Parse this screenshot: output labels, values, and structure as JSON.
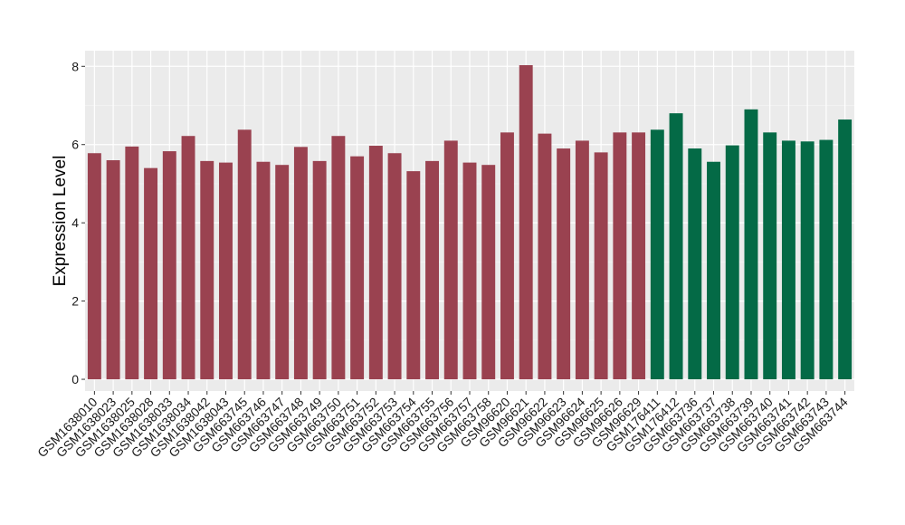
{
  "chart_data": {
    "type": "bar",
    "ylabel": "Expression Level",
    "xlabel": "",
    "ylim": [
      -0.3,
      8.4
    ],
    "yticks": [
      0,
      2,
      4,
      6,
      8
    ],
    "grid": true,
    "background": "#ebebeb",
    "categories": [
      "GSM1638010",
      "GSM1638023",
      "GSM1638025",
      "GSM1638028",
      "GSM1638033",
      "GSM1638034",
      "GSM1638042",
      "GSM1638043",
      "GSM663745",
      "GSM663746",
      "GSM663747",
      "GSM663748",
      "GSM663749",
      "GSM663750",
      "GSM663751",
      "GSM663752",
      "GSM663753",
      "GSM663754",
      "GSM663755",
      "GSM663756",
      "GSM663757",
      "GSM663758",
      "GSM96620",
      "GSM96621",
      "GSM96622",
      "GSM96623",
      "GSM96624",
      "GSM96625",
      "GSM96626",
      "GSM96629",
      "GSM176411",
      "GSM176412",
      "GSM663736",
      "GSM663737",
      "GSM663738",
      "GSM663739",
      "GSM663740",
      "GSM663741",
      "GSM663742",
      "GSM663743",
      "GSM663744"
    ],
    "values": [
      5.78,
      5.6,
      5.95,
      5.4,
      5.83,
      6.22,
      5.58,
      5.54,
      6.38,
      5.56,
      5.48,
      5.94,
      5.58,
      6.22,
      5.7,
      5.97,
      5.78,
      5.32,
      5.58,
      6.1,
      5.54,
      5.48,
      6.31,
      8.03,
      6.28,
      5.9,
      6.1,
      5.8,
      6.31,
      6.31,
      6.38,
      6.8,
      5.9,
      5.56,
      5.98,
      6.9,
      6.31,
      6.1,
      6.08,
      6.12,
      6.64
    ],
    "groups": [
      {
        "color": "#9a4250",
        "count": 30
      },
      {
        "color": "#046a46",
        "count": 11
      }
    ]
  }
}
